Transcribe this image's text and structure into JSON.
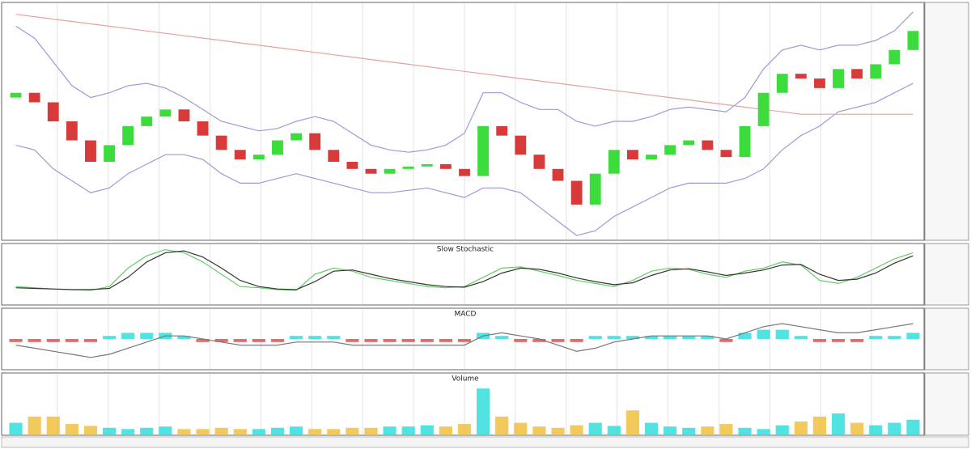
{
  "chart_data": [
    {
      "type": "candlestick",
      "open": [
        60,
        62,
        58,
        50,
        42,
        33,
        40,
        48,
        52,
        55,
        50,
        44,
        38,
        34,
        36,
        42,
        45,
        38,
        33,
        30,
        28,
        30,
        31,
        32,
        30,
        27,
        48,
        44,
        36,
        30,
        25,
        15,
        28,
        38,
        34,
        36,
        40,
        42,
        38,
        35,
        48,
        62,
        70,
        68,
        64,
        72,
        68,
        74,
        80
      ],
      "close": [
        62,
        58,
        50,
        42,
        33,
        40,
        48,
        52,
        55,
        50,
        44,
        38,
        34,
        36,
        42,
        45,
        38,
        33,
        30,
        28,
        30,
        31,
        32,
        30,
        27,
        48,
        44,
        36,
        30,
        25,
        15,
        28,
        38,
        34,
        36,
        40,
        42,
        38,
        35,
        48,
        62,
        70,
        68,
        64,
        72,
        68,
        74,
        80,
        88
      ],
      "up_color": "#3ddc3d",
      "down_color": "#d83a3a",
      "lines": [
        {
          "color": "#9a9ad8",
          "values": [
            90,
            85,
            75,
            65,
            60,
            62,
            65,
            66,
            64,
            60,
            55,
            50,
            48,
            46,
            47,
            50,
            52,
            50,
            45,
            40,
            38,
            37,
            38,
            40,
            45,
            62,
            62,
            58,
            55,
            55,
            50,
            48,
            50,
            50,
            52,
            55,
            56,
            55,
            54,
            60,
            72,
            80,
            82,
            80,
            82,
            82,
            84,
            88,
            96
          ]
        },
        {
          "color": "#9a9ad8",
          "values": [
            40,
            38,
            30,
            25,
            20,
            22,
            28,
            32,
            36,
            36,
            34,
            28,
            24,
            24,
            26,
            28,
            26,
            24,
            22,
            20,
            20,
            21,
            22,
            20,
            18,
            22,
            22,
            20,
            14,
            8,
            2,
            4,
            10,
            14,
            18,
            22,
            24,
            24,
            24,
            26,
            30,
            38,
            44,
            48,
            54,
            56,
            58,
            62,
            66
          ]
        },
        {
          "color": "#e8a0a0",
          "values": [
            95,
            94,
            93,
            92,
            91,
            90,
            89,
            88,
            87,
            86,
            85,
            84,
            83,
            82,
            81,
            80,
            79,
            78,
            77,
            76,
            75,
            74,
            73,
            72,
            71,
            70,
            69,
            68,
            67,
            66,
            65,
            64,
            63,
            62,
            61,
            60,
            59,
            58,
            57,
            56,
            55,
            54,
            53,
            53,
            53,
            53,
            53,
            53,
            53
          ]
        }
      ],
      "ylim": [
        0,
        100
      ]
    },
    {
      "type": "line",
      "title": "Slow Stochastic",
      "series": [
        {
          "color": "#66cc66",
          "values": [
            30,
            28,
            26,
            25,
            24,
            30,
            60,
            80,
            90,
            85,
            70,
            50,
            30,
            28,
            25,
            24,
            50,
            60,
            55,
            45,
            40,
            35,
            30,
            28,
            30,
            45,
            60,
            62,
            55,
            48,
            40,
            35,
            30,
            40,
            55,
            60,
            58,
            50,
            45,
            55,
            60,
            70,
            65,
            40,
            35,
            45,
            60,
            75,
            85
          ]
        },
        {
          "color": "#333333",
          "values": [
            28,
            27,
            26,
            25,
            25,
            27,
            45,
            70,
            85,
            88,
            78,
            60,
            40,
            30,
            26,
            25,
            38,
            55,
            57,
            50,
            43,
            38,
            33,
            30,
            29,
            38,
            52,
            60,
            58,
            52,
            44,
            38,
            33,
            36,
            48,
            57,
            59,
            54,
            48,
            52,
            57,
            65,
            66,
            50,
            40,
            42,
            52,
            68,
            80
          ]
        }
      ],
      "ylim": [
        0,
        100
      ]
    },
    {
      "type": "bar",
      "title": "MACD",
      "values": [
        -1,
        -1,
        -1,
        -1,
        -1,
        1,
        2,
        2,
        2,
        1,
        -1,
        -1,
        -1,
        -1,
        -1,
        1,
        1,
        1,
        -1,
        -1,
        -1,
        -1,
        -1,
        -1,
        -1,
        2,
        1,
        -1,
        -1,
        -1,
        -1,
        1,
        1,
        1,
        1,
        1,
        1,
        1,
        -1,
        2,
        3,
        3,
        1,
        -1,
        -1,
        -1,
        1,
        1,
        2
      ],
      "colors": [
        "#33dddd",
        "#e05050"
      ],
      "series": [
        {
          "color": "#777777",
          "values": [
            -2,
            -3,
            -4,
            -5,
            -6,
            -5,
            -3,
            -1,
            1,
            1,
            0,
            -1,
            -2,
            -2,
            -2,
            -1,
            -1,
            -1,
            -2,
            -2,
            -2,
            -2,
            -2,
            -2,
            -2,
            1,
            2,
            1,
            0,
            -2,
            -4,
            -3,
            -1,
            0,
            1,
            1,
            1,
            1,
            0,
            2,
            4,
            5,
            4,
            3,
            2,
            2,
            3,
            4,
            5
          ]
        }
      ],
      "ylim": [
        -10,
        10
      ]
    },
    {
      "type": "bar",
      "title": "Volume",
      "values": [
        20,
        30,
        30,
        18,
        15,
        12,
        10,
        12,
        14,
        10,
        10,
        12,
        10,
        10,
        12,
        14,
        10,
        10,
        12,
        12,
        14,
        14,
        16,
        14,
        18,
        75,
        30,
        20,
        14,
        12,
        16,
        20,
        15,
        40,
        20,
        14,
        12,
        14,
        18,
        12,
        10,
        16,
        22,
        30,
        35,
        20,
        16,
        20,
        25
      ],
      "colors": [
        "#33dddd",
        "#f0c040"
      ],
      "ylim": [
        0,
        100
      ]
    }
  ]
}
